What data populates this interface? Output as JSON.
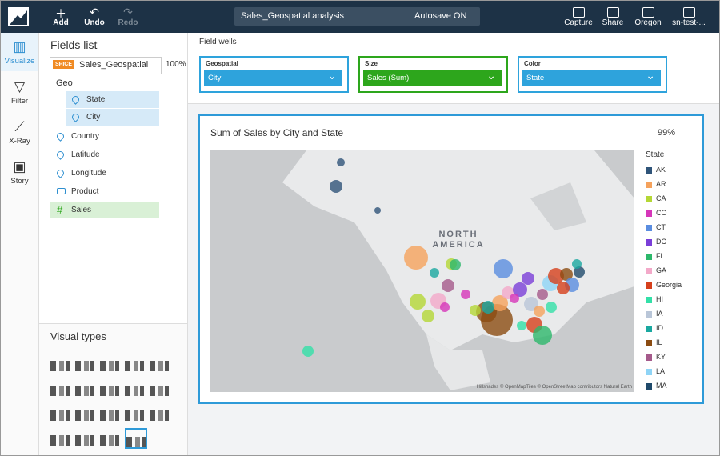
{
  "toolbar": {
    "left_buttons": [
      "Add",
      "Undo",
      "Redo"
    ],
    "analysis_name": "Sales_Geospatial analysis",
    "autosave": "Autosave ON",
    "right_buttons": [
      "Capture",
      "Share",
      "Oregon",
      "sn-test-..."
    ]
  },
  "sidebar": [
    "Visualize",
    "Filter",
    "X-Ray",
    "Story"
  ],
  "fields_panel": {
    "title": "Fields list",
    "badge": "SPICE",
    "dataset": "Sales_Geospatial",
    "zoom": "100%",
    "group": "Geo",
    "geo_fields": [
      "State",
      "City"
    ],
    "fields": [
      "Country",
      "Latitude",
      "Longitude",
      "Product",
      "Sales"
    ]
  },
  "visual_types": {
    "title": "Visual types"
  },
  "field_wells": {
    "title": "Field wells",
    "wells": [
      {
        "label": "Geospatial",
        "value": "City",
        "color": "#2ea3dc"
      },
      {
        "label": "Size",
        "value": "Sales (Sum)",
        "color": "#2da61c"
      },
      {
        "label": "Color",
        "value": "State",
        "color": "#2ea3dc"
      }
    ]
  },
  "visual": {
    "title": "Sum of Sales by City and State",
    "completion": "99%",
    "map_label": [
      "NORTH",
      "AMERICA"
    ],
    "attribution": "Hillshades © OpenMapTiles © OpenStreetMap contributors Natural Earth",
    "legend": {
      "title": "State",
      "entries": [
        {
          "name": "AK",
          "color": "#2f5479"
        },
        {
          "name": "AR",
          "color": "#f5a25c"
        },
        {
          "name": "CA",
          "color": "#b4d736"
        },
        {
          "name": "CO",
          "color": "#d636b9"
        },
        {
          "name": "CT",
          "color": "#5a8de0"
        },
        {
          "name": "DC",
          "color": "#7a3ed8"
        },
        {
          "name": "FL",
          "color": "#2db86b"
        },
        {
          "name": "GA",
          "color": "#f3a9c9"
        },
        {
          "name": "Georgia",
          "color": "#d6401c"
        },
        {
          "name": "HI",
          "color": "#33e0a8"
        },
        {
          "name": "IA",
          "color": "#b9c6d8"
        },
        {
          "name": "ID",
          "color": "#1aa8a0"
        },
        {
          "name": "IL",
          "color": "#8b4c12"
        },
        {
          "name": "KY",
          "color": "#a55a8b"
        },
        {
          "name": "LA",
          "color": "#8fd4f6"
        },
        {
          "name": "MA",
          "color": "#1f4a6b"
        }
      ]
    }
  }
}
